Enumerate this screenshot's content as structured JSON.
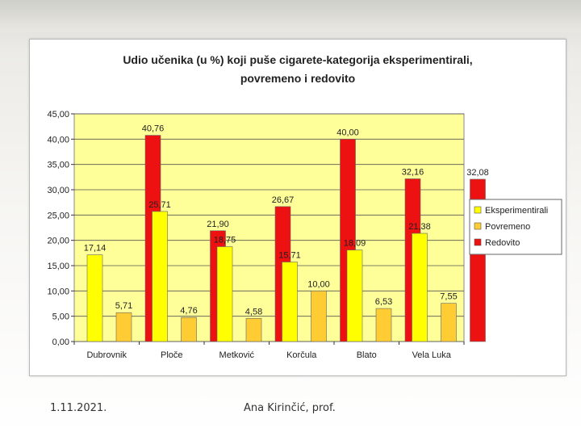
{
  "footer": {
    "date": "1.11.2021.",
    "author": "Ana Kirinčić, prof."
  },
  "chart_data": {
    "type": "bar",
    "title_line1": "Udio učenika (u %) koji puše cigarete-kategorija eksperimentirali,",
    "title_line2": "povremeno i redovito",
    "categories": [
      "Dubrovnik",
      "Ploče",
      "Metković",
      "Korčula",
      "Blato",
      "Vela Luka"
    ],
    "series": [
      {
        "name": "Eksperimentirali",
        "color": "#ffff00",
        "values": [
          17.14,
          25.71,
          18.75,
          15.71,
          18.09,
          21.38
        ],
        "labels": [
          "17,14",
          "25,71",
          "18,75",
          "15,71",
          "18,09",
          "21,38"
        ]
      },
      {
        "name": "Povremeno",
        "color": "#ffcc33",
        "values": [
          5.71,
          4.76,
          4.58,
          10.0,
          6.53,
          7.55
        ],
        "labels": [
          "5,71",
          "4,76",
          "4,58",
          "10,00",
          "6,53",
          "7,55"
        ]
      },
      {
        "name": "Redovito",
        "color": "#ee1111",
        "values": [
          40.76,
          21.9,
          26.67,
          40.0,
          32.16,
          32.08
        ],
        "labels": [
          "40,76",
          "21,90",
          "26,67",
          "40,00",
          "32,16",
          "32,08"
        ]
      }
    ],
    "ylim": [
      0,
      45
    ],
    "ytick_labels": [
      "0,00",
      "5,00",
      "10,00",
      "15,00",
      "20,00",
      "25,00",
      "30,00",
      "35,00",
      "40,00",
      "45,00"
    ],
    "grid": true,
    "legend_position": "right",
    "plot_background": "#ffff99"
  }
}
